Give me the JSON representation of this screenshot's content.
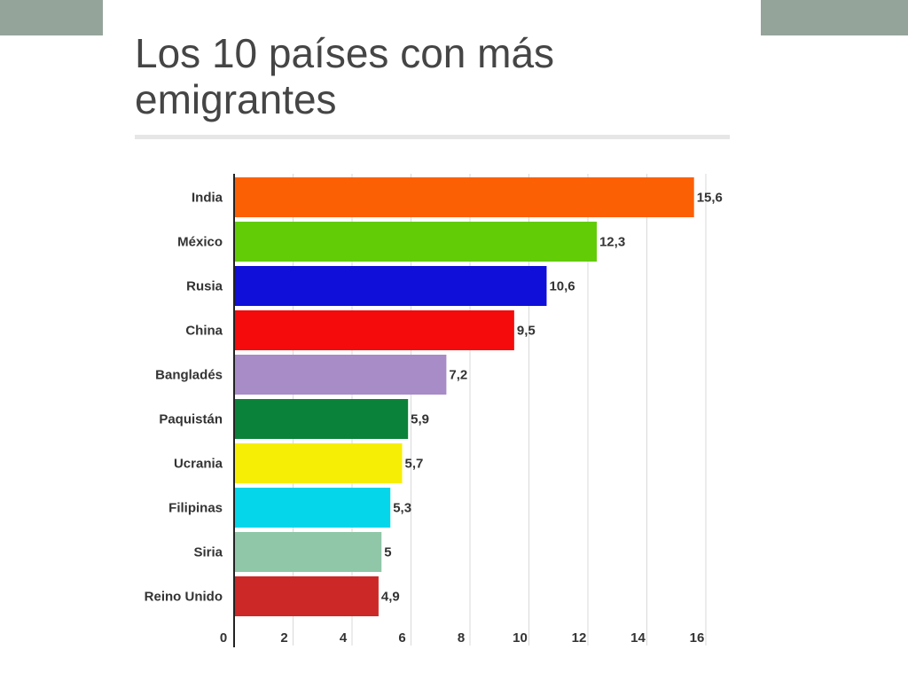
{
  "chart_data": {
    "type": "bar",
    "orientation": "horizontal",
    "title": "Los 10 países con más emigrantes",
    "xlabel": "",
    "ylabel": "",
    "categories": [
      "India",
      "México",
      "Rusia",
      "China",
      "Bangladés",
      "Paquistán",
      "Ucrania",
      "Filipinas",
      "Siria",
      "Reino Unido"
    ],
    "values": [
      15.6,
      12.3,
      10.6,
      9.5,
      7.2,
      5.9,
      5.7,
      5.3,
      5,
      4.9
    ],
    "value_labels": [
      "15,6",
      "12,3",
      "10,6",
      "9,5",
      "7,2",
      "5,9",
      "5,7",
      "5,3",
      "5",
      "4,9"
    ],
    "colors": [
      "#fc6004",
      "#62cc06",
      "#0f0fd9",
      "#f50b0b",
      "#a78cc7",
      "#0b8239",
      "#f7ee06",
      "#06d6ea",
      "#8fc7a8",
      "#cc2828"
    ],
    "xlim": [
      0,
      16
    ],
    "xticks": [
      "0",
      "2",
      "4",
      "6",
      "8",
      "10",
      "12",
      "14",
      "16"
    ],
    "grid": true,
    "legend": "none"
  }
}
